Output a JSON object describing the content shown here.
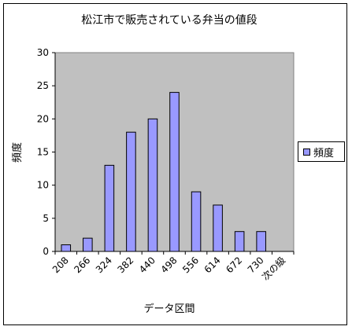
{
  "chart_data": {
    "type": "bar",
    "title": "松江市で販売されている弁当の値段",
    "xlabel": "データ区間",
    "ylabel": "頻度",
    "categories": [
      "208",
      "266",
      "324",
      "382",
      "440",
      "498",
      "556",
      "614",
      "672",
      "730",
      "次の級"
    ],
    "series": [
      {
        "name": "頻度",
        "values": [
          1,
          2,
          13,
          18,
          20,
          24,
          9,
          7,
          3,
          3,
          0
        ]
      }
    ],
    "ylim": [
      0,
      30
    ],
    "yticks": [
      0,
      5,
      10,
      15,
      20,
      25,
      30
    ],
    "grid": false,
    "legend": "right",
    "colors": {
      "plot_bg": "#c0c0c0",
      "bar_fill": "#9999ff",
      "bar_stroke": "#000000"
    }
  }
}
